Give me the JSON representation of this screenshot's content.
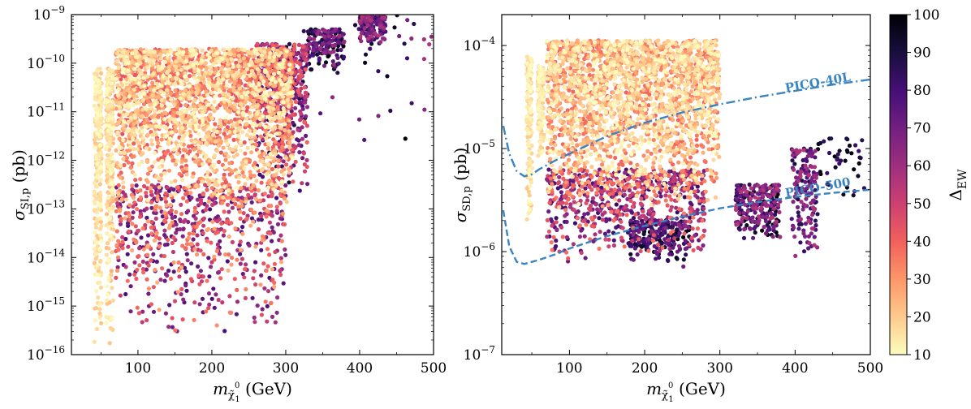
{
  "chart_data": [
    {
      "type": "scatter",
      "id": "si",
      "xlabel_main": "m",
      "xlabel_sub": "χ̃",
      "xlabel_sub2": "1",
      "xlabel_sup": "0",
      "xlabel_unit": " (GeV)",
      "ylabel_main": "σ",
      "ylabel_sub": "SI,p",
      "ylabel_unit": " (pb)",
      "xlim": [
        10,
        500
      ],
      "ylog": true,
      "ylim_exp": [
        -16,
        -9
      ],
      "xticks": [
        100,
        200,
        300,
        400,
        500
      ],
      "yticks_exp": [
        -16,
        -15,
        -14,
        -13,
        -12,
        -11,
        -10,
        -9
      ],
      "color_by": "ΔEW",
      "clusters": [
        {
          "x": [
            41,
            51
          ],
          "y_exp": [
            -16,
            -10.1
          ],
          "c": [
            10,
            22
          ],
          "n": 260
        },
        {
          "x": [
            57,
            67
          ],
          "y_exp": [
            -16,
            -10.1
          ],
          "c": [
            10,
            25
          ],
          "n": 260
        },
        {
          "x": [
            70,
            310
          ],
          "y_exp": [
            -13,
            -9.7
          ],
          "c": [
            10,
            45
          ],
          "n": 2400
        },
        {
          "x": [
            70,
            300
          ],
          "y_exp": [
            -15.6,
            -12.5
          ],
          "c": [
            25,
            80
          ],
          "n": 700
        },
        {
          "x": [
            260,
            330
          ],
          "y_exp": [
            -12.8,
            -9.6
          ],
          "c": [
            40,
            90
          ],
          "n": 500
        },
        {
          "x": [
            330,
            380
          ],
          "y_exp": [
            -10.2,
            -9.3
          ],
          "c": [
            60,
            100
          ],
          "n": 160
        },
        {
          "x": [
            400,
            435
          ],
          "y_exp": [
            -9.6,
            -9.0
          ],
          "c": [
            55,
            90
          ],
          "n": 160
        },
        {
          "x": [
            300,
            500
          ],
          "y_exp": [
            -12,
            -9
          ],
          "c": [
            55,
            100
          ],
          "n": 40
        }
      ]
    },
    {
      "type": "scatter",
      "id": "sd",
      "xlabel_main": "m",
      "xlabel_sub": "χ̃",
      "xlabel_sub2": "1",
      "xlabel_sup": "0",
      "xlabel_unit": " (GeV)",
      "ylabel_main": "σ",
      "ylabel_sub": "SD,p",
      "ylabel_unit": " (pb)",
      "xlim": [
        10,
        500
      ],
      "ylog": true,
      "ylim_exp": [
        -7,
        -3.7
      ],
      "xticks": [
        100,
        200,
        300,
        400,
        500
      ],
      "yticks_exp": [
        -7,
        -6,
        -5,
        -4
      ],
      "color_by": "ΔEW",
      "clusters": [
        {
          "x": [
            43,
            50
          ],
          "y_exp": [
            -5.8,
            -4.1
          ],
          "c": [
            10,
            22
          ],
          "n": 140
        },
        {
          "x": [
            58,
            66
          ],
          "y_exp": [
            -5.2,
            -4.2
          ],
          "c": [
            10,
            22
          ],
          "n": 140
        },
        {
          "x": [
            70,
            300
          ],
          "y_exp": [
            -5.6,
            -3.95
          ],
          "c": [
            10,
            40
          ],
          "n": 2400
        },
        {
          "x": [
            70,
            280
          ],
          "y_exp": [
            -6.1,
            -5.2
          ],
          "c": [
            35,
            85
          ],
          "n": 700
        },
        {
          "x": [
            180,
            260
          ],
          "y_exp": [
            -6.15,
            -5.7
          ],
          "c": [
            70,
            100
          ],
          "n": 200
        },
        {
          "x": [
            320,
            380
          ],
          "y_exp": [
            -5.95,
            -5.35
          ],
          "c": [
            55,
            100
          ],
          "n": 260
        },
        {
          "x": [
            395,
            430
          ],
          "y_exp": [
            -6.2,
            -5.0
          ],
          "c": [
            55,
            90
          ],
          "n": 160
        },
        {
          "x": [
            430,
            500
          ],
          "y_exp": [
            -5.5,
            -4.9
          ],
          "c": [
            80,
            100
          ],
          "n": 40
        }
      ],
      "limits": [
        {
          "name": "PICO-40L",
          "style": "dashdot",
          "x": [
            12,
            20,
            30,
            40,
            50,
            60,
            80,
            100,
            150,
            200,
            250,
            300,
            350,
            400,
            450,
            500
          ],
          "y_exp": [
            -4.78,
            -5.05,
            -5.22,
            -5.27,
            -5.25,
            -5.2,
            -5.12,
            -5.05,
            -4.88,
            -4.75,
            -4.65,
            -4.57,
            -4.5,
            -4.44,
            -4.38,
            -4.33
          ]
        },
        {
          "name": "PICO-500",
          "style": "dashed",
          "x": [
            12,
            20,
            30,
            40,
            50,
            60,
            80,
            100,
            150,
            200,
            250,
            300,
            350,
            400,
            450,
            500
          ],
          "y_exp": [
            -5.6,
            -5.95,
            -6.1,
            -6.12,
            -6.1,
            -6.08,
            -6.03,
            -5.97,
            -5.85,
            -5.75,
            -5.66,
            -5.58,
            -5.52,
            -5.47,
            -5.43,
            -5.4
          ]
        }
      ]
    }
  ],
  "colorbar": {
    "label_main": "Δ",
    "label_sub": "EW",
    "min": 10,
    "max": 100,
    "ticks": [
      10,
      20,
      30,
      40,
      50,
      60,
      70,
      80,
      90,
      100
    ],
    "colormap": "magma_r",
    "stops": [
      "#fcfdbf",
      "#feca8d",
      "#fd9668",
      "#f1605d",
      "#cd4071",
      "#9e2f7f",
      "#721f81",
      "#440f76",
      "#180f3d",
      "#000004"
    ]
  }
}
